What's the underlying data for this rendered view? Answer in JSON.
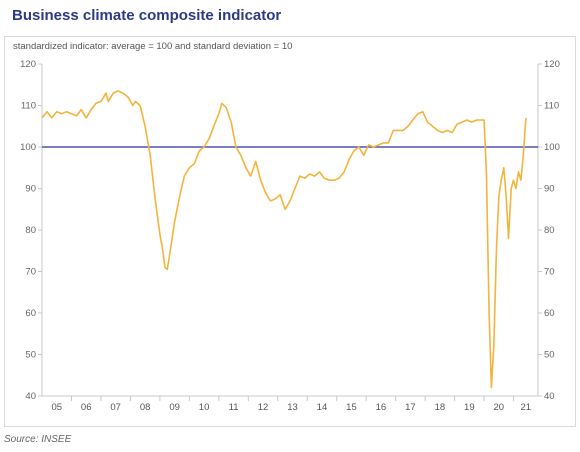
{
  "chart_data": {
    "type": "line",
    "title": "Business climate composite indicator",
    "subtitle": "standardized indicator: average = 100 and standard deviation = 10",
    "source": "Source: INSEE",
    "ylim": [
      40,
      120
    ],
    "yticks": [
      40,
      50,
      60,
      70,
      80,
      90,
      100,
      110,
      120
    ],
    "xlim": [
      2005,
      2021.83
    ],
    "x_tick_labels": [
      "05",
      "06",
      "07",
      "08",
      "09",
      "10",
      "11",
      "12",
      "13",
      "14",
      "15",
      "16",
      "17",
      "18",
      "19",
      "20",
      "21"
    ],
    "reference_line": {
      "value": 100,
      "color": "#4a55a8"
    },
    "grid": false,
    "series": [
      {
        "color": "#f4b43c",
        "points": [
          [
            2005.0,
            107
          ],
          [
            2005.17,
            108.5
          ],
          [
            2005.33,
            107
          ],
          [
            2005.5,
            108.5
          ],
          [
            2005.67,
            108
          ],
          [
            2005.83,
            108.5
          ],
          [
            2006.0,
            108
          ],
          [
            2006.17,
            107.5
          ],
          [
            2006.33,
            109
          ],
          [
            2006.5,
            107
          ],
          [
            2006.67,
            109
          ],
          [
            2006.83,
            110.5
          ],
          [
            2007.0,
            111
          ],
          [
            2007.17,
            113
          ],
          [
            2007.25,
            111
          ],
          [
            2007.42,
            113
          ],
          [
            2007.58,
            113.5
          ],
          [
            2007.75,
            113
          ],
          [
            2007.92,
            112
          ],
          [
            2008.08,
            110
          ],
          [
            2008.17,
            111
          ],
          [
            2008.33,
            110
          ],
          [
            2008.5,
            105
          ],
          [
            2008.67,
            98
          ],
          [
            2008.83,
            88
          ],
          [
            2009.0,
            79
          ],
          [
            2009.1,
            75
          ],
          [
            2009.17,
            71
          ],
          [
            2009.25,
            70.5
          ],
          [
            2009.33,
            74
          ],
          [
            2009.5,
            82
          ],
          [
            2009.67,
            88
          ],
          [
            2009.83,
            93
          ],
          [
            2010.0,
            95
          ],
          [
            2010.17,
            96
          ],
          [
            2010.33,
            99
          ],
          [
            2010.5,
            100
          ],
          [
            2010.67,
            102
          ],
          [
            2010.83,
            105
          ],
          [
            2011.0,
            108
          ],
          [
            2011.1,
            110.5
          ],
          [
            2011.25,
            109.5
          ],
          [
            2011.42,
            106
          ],
          [
            2011.58,
            100
          ],
          [
            2011.75,
            98
          ],
          [
            2011.92,
            95
          ],
          [
            2012.08,
            93
          ],
          [
            2012.25,
            96.5
          ],
          [
            2012.42,
            92
          ],
          [
            2012.58,
            89
          ],
          [
            2012.75,
            87
          ],
          [
            2012.92,
            87.5
          ],
          [
            2013.08,
            88.5
          ],
          [
            2013.25,
            85
          ],
          [
            2013.42,
            87
          ],
          [
            2013.58,
            90
          ],
          [
            2013.75,
            93
          ],
          [
            2013.92,
            92.5
          ],
          [
            2014.08,
            93.5
          ],
          [
            2014.25,
            93
          ],
          [
            2014.42,
            94
          ],
          [
            2014.58,
            92.5
          ],
          [
            2014.75,
            92
          ],
          [
            2014.92,
            92
          ],
          [
            2015.08,
            92.5
          ],
          [
            2015.25,
            94
          ],
          [
            2015.42,
            97
          ],
          [
            2015.58,
            99
          ],
          [
            2015.75,
            100
          ],
          [
            2015.92,
            98
          ],
          [
            2016.08,
            100.5
          ],
          [
            2016.25,
            100
          ],
          [
            2016.42,
            100.5
          ],
          [
            2016.58,
            101
          ],
          [
            2016.75,
            101
          ],
          [
            2016.92,
            104
          ],
          [
            2017.08,
            104
          ],
          [
            2017.25,
            104
          ],
          [
            2017.42,
            105
          ],
          [
            2017.58,
            106.5
          ],
          [
            2017.75,
            108
          ],
          [
            2017.92,
            108.5
          ],
          [
            2018.08,
            106
          ],
          [
            2018.25,
            105
          ],
          [
            2018.42,
            104
          ],
          [
            2018.58,
            103.5
          ],
          [
            2018.75,
            104
          ],
          [
            2018.92,
            103.5
          ],
          [
            2019.08,
            105.5
          ],
          [
            2019.25,
            106
          ],
          [
            2019.42,
            106.5
          ],
          [
            2019.58,
            106
          ],
          [
            2019.75,
            106.5
          ],
          [
            2019.92,
            106.5
          ],
          [
            2020.0,
            106.5
          ],
          [
            2020.08,
            94
          ],
          [
            2020.17,
            60
          ],
          [
            2020.25,
            42
          ],
          [
            2020.33,
            52
          ],
          [
            2020.42,
            75
          ],
          [
            2020.5,
            88
          ],
          [
            2020.58,
            92
          ],
          [
            2020.67,
            95
          ],
          [
            2020.75,
            88
          ],
          [
            2020.83,
            78
          ],
          [
            2020.92,
            90
          ],
          [
            2021.0,
            92
          ],
          [
            2021.08,
            90
          ],
          [
            2021.17,
            94
          ],
          [
            2021.25,
            92
          ],
          [
            2021.33,
            98
          ],
          [
            2021.42,
            107
          ]
        ]
      }
    ]
  }
}
